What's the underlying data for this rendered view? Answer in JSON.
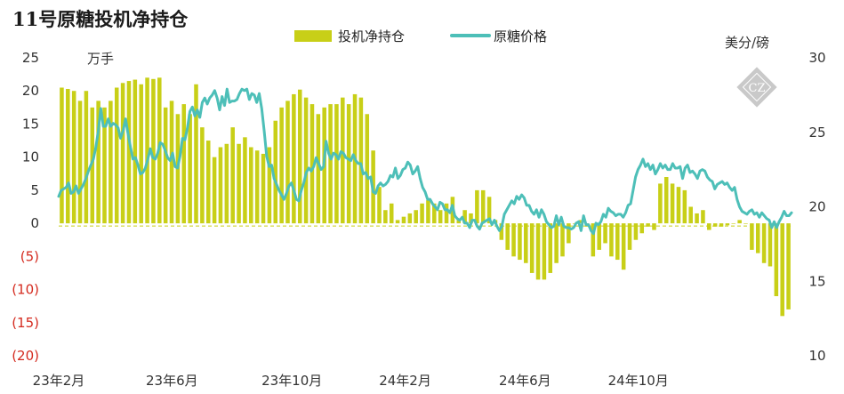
{
  "chart_data": {
    "type": "bar+line",
    "title": "11号原糖投机净持仓",
    "left_unit": "万手",
    "right_unit": "美分/磅",
    "left_axis": {
      "min": -20,
      "max": 25,
      "ticks": [
        {
          "value": 25,
          "label": "25"
        },
        {
          "value": 20,
          "label": "20"
        },
        {
          "value": 15,
          "label": "15"
        },
        {
          "value": 10,
          "label": "10"
        },
        {
          "value": 5,
          "label": "5"
        },
        {
          "value": 0,
          "label": "0"
        },
        {
          "value": -5,
          "label": "(5)"
        },
        {
          "value": -10,
          "label": "(10)"
        },
        {
          "value": -15,
          "label": "(15)"
        },
        {
          "value": -20,
          "label": "(20)"
        }
      ]
    },
    "right_axis": {
      "min": 10,
      "max": 30,
      "ticks": [
        {
          "value": 30,
          "label": "30"
        },
        {
          "value": 25,
          "label": "25"
        },
        {
          "value": 20,
          "label": "20"
        },
        {
          "value": 15,
          "label": "15"
        },
        {
          "value": 10,
          "label": "10"
        }
      ]
    },
    "x_range": [
      0,
      110
    ],
    "x_ticks": [
      {
        "value": 0,
        "label": "23年2月"
      },
      {
        "value": 17,
        "label": "23年6月"
      },
      {
        "value": 35,
        "label": "23年10月"
      },
      {
        "value": 52,
        "label": "24年2月"
      },
      {
        "value": 70,
        "label": "24年6月"
      },
      {
        "value": 87,
        "label": "24年10月"
      }
    ],
    "legend": {
      "position": "top",
      "bar_label": "投机净持仓",
      "line_label": "原糖价格"
    },
    "watermark": "CZ",
    "colors": {
      "bar": "#c8cf17",
      "line": "#4dbfb8",
      "negative_tick": "#d42a1e"
    },
    "net_position": [
      20.5,
      20.3,
      20.0,
      18.5,
      20.0,
      17.5,
      18.5,
      17.5,
      18.5,
      20.5,
      21.2,
      21.5,
      21.7,
      21.0,
      22.0,
      21.8,
      22.0,
      17.5,
      18.5,
      16.5,
      18.0,
      16.5,
      21.0,
      14.5,
      12.5,
      10.0,
      11.5,
      12.0,
      14.5,
      12.0,
      13.0,
      11.5,
      11.0,
      10.5,
      11.5,
      15.5,
      17.5,
      18.5,
      19.5,
      20.2,
      19.0,
      18.0,
      16.5,
      17.5,
      18.0,
      18.0,
      19.0,
      18.0,
      19.5,
      19.0,
      16.5,
      11.0,
      5.5,
      2.0,
      3.0,
      0.5,
      1.0,
      1.5,
      2.0,
      3.0,
      3.5,
      3.0,
      2.0,
      3.0,
      4.0,
      0.5,
      2.0,
      1.5,
      5.0,
      5.0,
      4.0,
      0.5,
      -2.5,
      -4.0,
      -5.0,
      -5.5,
      -6.0,
      -7.5,
      -8.5,
      -8.5,
      -7.5,
      -6.0,
      -5.0,
      -3.0,
      0.0,
      0.5,
      -0.5,
      -5.0,
      -4.0,
      -3.0,
      -5.0,
      -5.5,
      -7.0,
      -4.0,
      -2.5,
      -1.5,
      -0.5,
      -1.0,
      6.0,
      7.0,
      6.0,
      5.5,
      5.0,
      2.5,
      1.5,
      2.0,
      -1.0,
      -0.5,
      -0.5,
      -0.3,
      0.0,
      0.5,
      0.0,
      -4.0,
      -4.5,
      -6.0,
      -6.5,
      -11.0,
      -14.0,
      -13.0
    ],
    "raw_sugar_price": [
      20.7,
      21.1,
      21.2,
      21.3,
      21.6,
      20.9,
      21.0,
      21.4,
      20.9,
      21.2,
      21.5,
      21.9,
      22.4,
      22.8,
      23.2,
      24.0,
      25.1,
      26.6,
      25.4,
      25.4,
      25.9,
      25.4,
      25.6,
      25.5,
      25.3,
      24.6,
      25.1,
      25.9,
      24.9,
      24.0,
      23.2,
      23.3,
      22.8,
      22.2,
      22.3,
      22.6,
      23.2,
      23.9,
      23.3,
      23.2,
      23.6,
      24.3,
      24.2,
      23.8,
      23.3,
      23.1,
      23.6,
      22.7,
      22.6,
      23.4,
      24.6,
      24.5,
      25.3,
      26.4,
      26.7,
      26.1,
      26.5,
      26.0,
      27.0,
      27.3,
      26.9,
      27.3,
      27.5,
      27.8,
      27.3,
      26.5,
      27.4,
      26.8,
      27.9,
      27.0,
      27.1,
      27.1,
      27.2,
      27.6,
      27.9,
      27.8,
      27.9,
      27.2,
      27.6,
      27.5,
      27.0,
      27.6,
      26.6,
      25.1,
      23.4,
      22.7,
      22.8,
      21.9,
      21.5,
      21.1,
      20.8,
      20.5,
      20.9,
      21.4,
      21.6,
      21.1,
      20.5,
      20.4,
      21.1,
      21.6,
      22.3,
      22.6,
      22.4,
      22.7,
      23.3,
      22.9,
      22.5,
      22.7,
      24.4,
      23.6,
      23.2,
      23.6,
      23.5,
      23.2,
      23.7,
      23.6,
      23.3,
      23.2,
      23.1,
      23.5,
      23.1,
      22.9,
      22.9,
      22.2,
      22.3,
      21.9,
      22.0,
      21.0,
      20.9,
      21.4,
      21.6,
      21.4,
      21.5,
      21.7,
      22.1,
      22.0,
      22.6,
      21.9,
      22.1,
      22.5,
      22.6,
      23.0,
      22.8,
      22.2,
      22.4,
      22.7,
      21.9,
      21.3,
      21.0,
      20.5,
      20.5,
      20.2,
      20.0,
      19.8,
      20.3,
      20.2,
      19.8,
      19.8,
      19.6,
      20.1,
      19.4,
      19.2,
      19.1,
      19.3,
      18.9,
      18.9,
      18.6,
      19.1,
      19.1,
      18.7,
      18.5,
      18.9,
      19.0,
      19.1,
      19.2,
      18.8,
      19.1,
      18.7,
      18.4,
      18.7,
      19.5,
      19.8,
      20.1,
      20.4,
      20.2,
      20.7,
      20.5,
      20.8,
      20.6,
      20.1,
      20.1,
      19.7,
      19.5,
      19.8,
      19.3,
      19.8,
      19.5,
      19.0,
      18.8,
      18.6,
      18.7,
      19.4,
      18.8,
      19.3,
      18.7,
      18.6,
      18.6,
      18.5,
      18.6,
      18.9,
      19.0,
      18.4,
      19.4,
      18.8,
      18.8,
      18.4,
      18.2,
      18.9,
      18.8,
      19.0,
      19.5,
      19.3,
      19.9,
      19.7,
      19.6,
      19.4,
      19.5,
      19.5,
      19.3,
      19.6,
      20.1,
      20.2,
      21.1,
      22.0,
      22.5,
      22.8,
      23.2,
      22.7,
      22.9,
      22.5,
      22.8,
      22.2,
      22.5,
      22.9,
      22.6,
      22.8,
      22.5,
      22.5,
      22.9,
      22.6,
      22.6,
      22.7,
      21.9,
      22.6,
      22.8,
      22.3,
      22.4,
      22.2,
      21.9,
      22.4,
      22.5,
      22.4,
      22.0,
      21.8,
      21.7,
      21.2,
      21.5,
      21.6,
      21.7,
      21.5,
      21.6,
      21.3,
      21.1,
      21.3,
      20.5,
      20.0,
      19.7,
      19.6,
      19.5,
      19.7,
      19.8,
      19.5,
      19.6,
      19.3,
      19.6,
      19.4,
      19.2,
      19.1,
      18.6,
      19.0,
      18.6,
      19.0,
      19.3,
      19.7,
      19.4,
      19.4,
      19.6
    ]
  }
}
